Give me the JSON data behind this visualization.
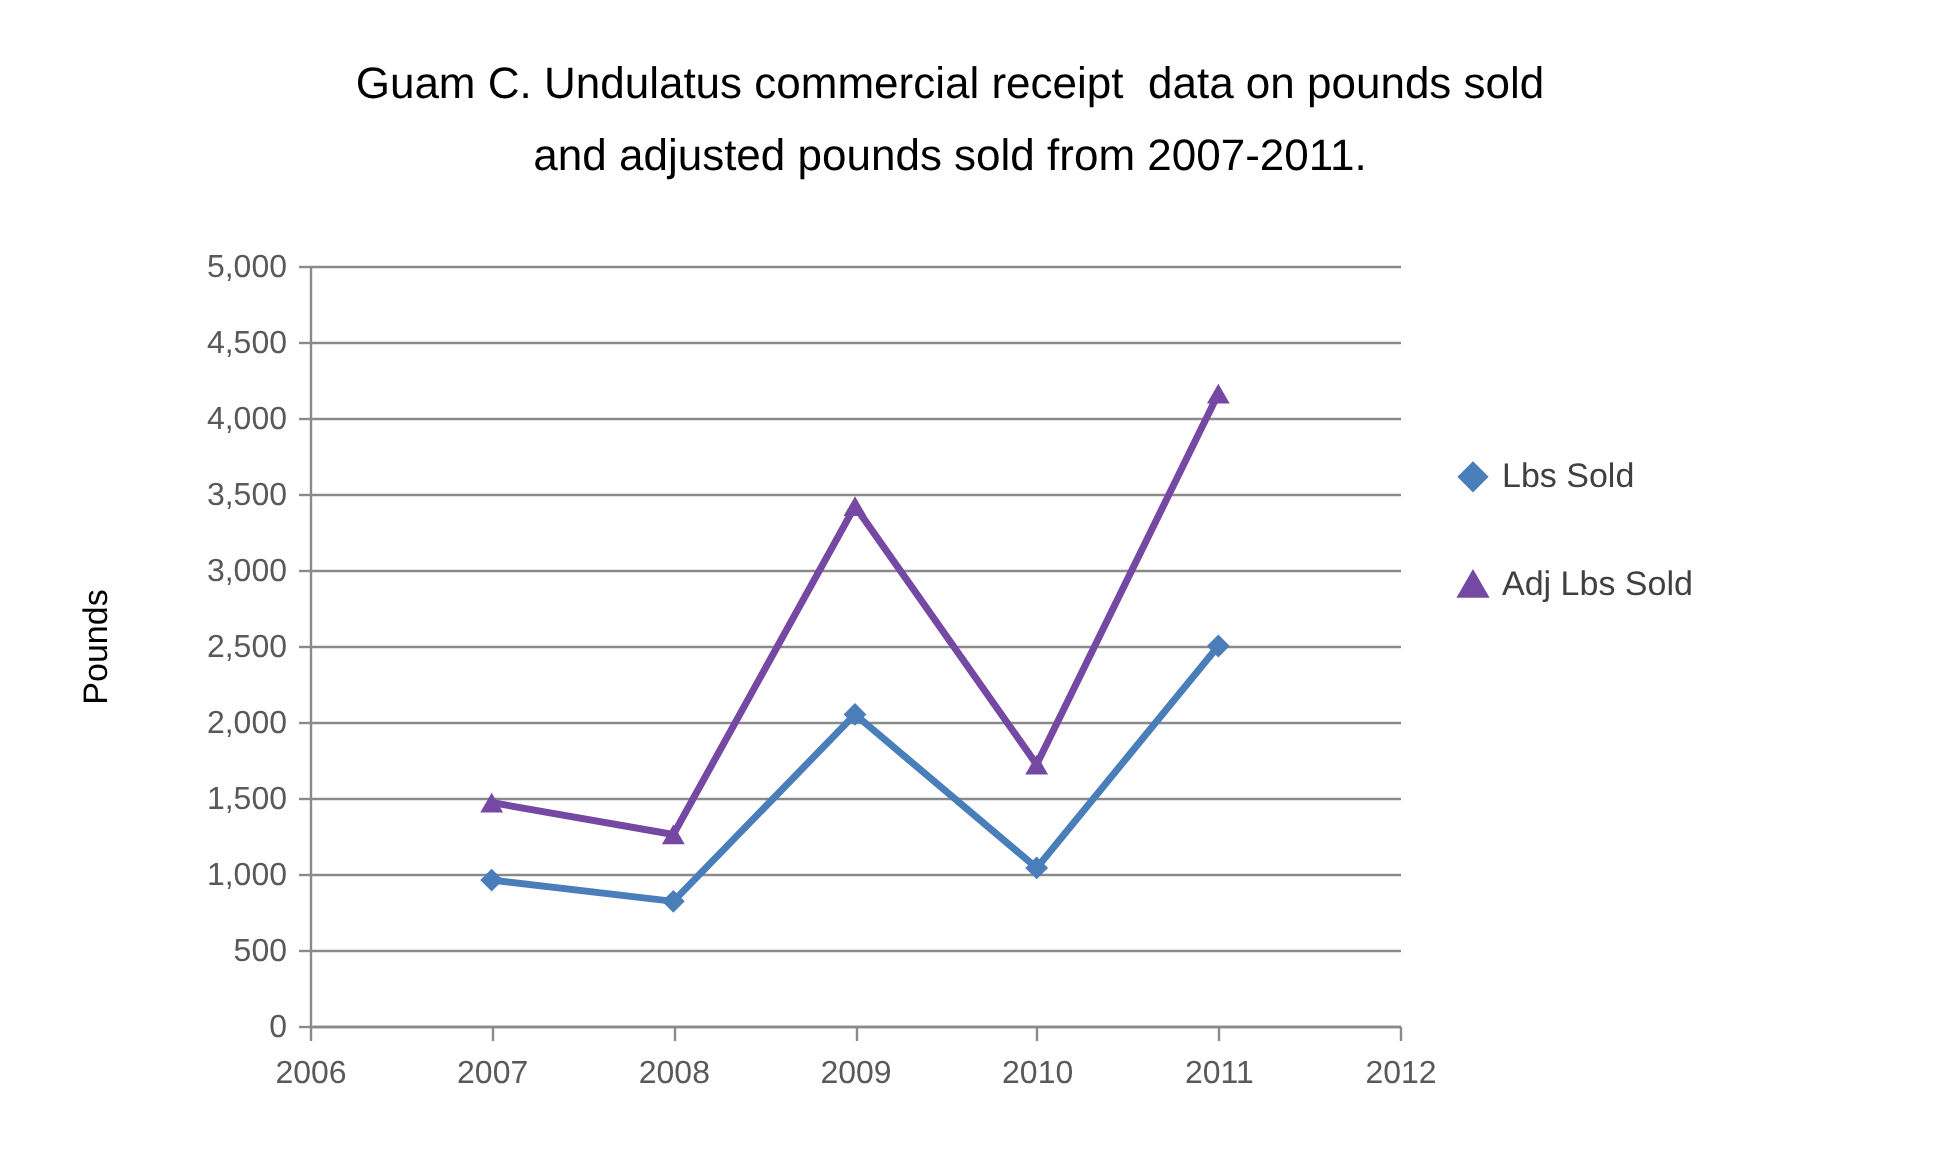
{
  "chart_data": {
    "type": "line",
    "title": "Guam C. Undulatus commercial receipt  data on pounds sold and adjusted pounds sold from 2007-2011.",
    "ylabel": "Pounds",
    "x": [
      2007,
      2008,
      2009,
      2010,
      2011
    ],
    "series": [
      {
        "name": "Lbs Sold",
        "color": "#4a7ebb",
        "marker": "diamond",
        "values": [
          960,
          820,
          2050,
          1040,
          2500
        ]
      },
      {
        "name": "Adj Lbs Sold",
        "color": "#7548a3",
        "marker": "triangle",
        "values": [
          1470,
          1260,
          3420,
          1720,
          4160
        ]
      }
    ],
    "xlim": [
      2006,
      2012
    ],
    "xticks": [
      2006,
      2007,
      2008,
      2009,
      2010,
      2011,
      2012
    ],
    "ylim": [
      0,
      5000
    ],
    "yticks": [
      0,
      500,
      {
        "value": 1000,
        "label": "1,000"
      },
      {
        "value": 1500,
        "label": "1,500"
      },
      {
        "value": 2000,
        "label": "2,000"
      },
      {
        "value": 2500,
        "label": "2,500"
      },
      {
        "value": 3000,
        "label": "3,000"
      },
      {
        "value": 3500,
        "label": "3,500"
      },
      {
        "value": 4000,
        "label": "4,000"
      },
      {
        "value": 4500,
        "label": "4,500"
      },
      {
        "value": 5000,
        "label": "5,000"
      }
    ],
    "grid": "y",
    "legend": "right",
    "line_style": "solid"
  }
}
